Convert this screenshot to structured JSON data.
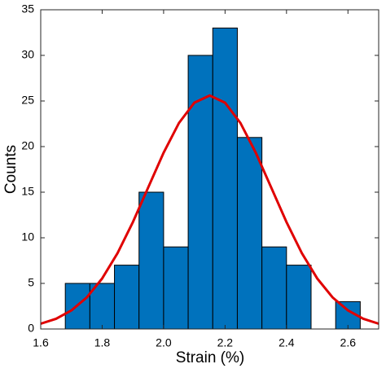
{
  "chart_data": {
    "type": "histogram",
    "xlabel": "Strain (%)",
    "ylabel": "Counts",
    "bins": [
      1.68,
      1.76,
      1.84,
      1.92,
      2.0,
      2.08,
      2.16,
      2.24,
      2.32,
      2.4,
      2.48,
      2.56,
      2.64
    ],
    "counts": [
      5,
      5,
      7,
      15,
      9,
      30,
      33,
      21,
      9,
      7,
      0,
      3
    ],
    "color": "#0072bd",
    "edgecolor": "#000000",
    "curve": {
      "type": "line",
      "color": "#e00000",
      "x": [
        1.6,
        1.65,
        1.7,
        1.75,
        1.8,
        1.85,
        1.9,
        1.95,
        2.0,
        2.05,
        2.1,
        2.15,
        2.2,
        2.25,
        2.3,
        2.35,
        2.4,
        2.45,
        2.5,
        2.55,
        2.6,
        2.65,
        2.7
      ],
      "values": [
        0.58,
        1.12,
        2.04,
        3.46,
        5.54,
        8.31,
        11.72,
        15.53,
        19.33,
        22.59,
        24.81,
        25.6,
        24.81,
        22.59,
        19.33,
        15.53,
        11.72,
        8.31,
        5.54,
        3.46,
        2.04,
        1.12,
        0.58
      ]
    },
    "xlim": [
      1.6,
      2.7
    ],
    "xticks": [
      1.6,
      1.8,
      {
        "value": 2,
        "label": "2.0"
      },
      2.2,
      2.4,
      2.6
    ],
    "ylim": [
      0,
      35
    ],
    "yticks": [
      0,
      5,
      10,
      15,
      20,
      25,
      30,
      35
    ]
  }
}
